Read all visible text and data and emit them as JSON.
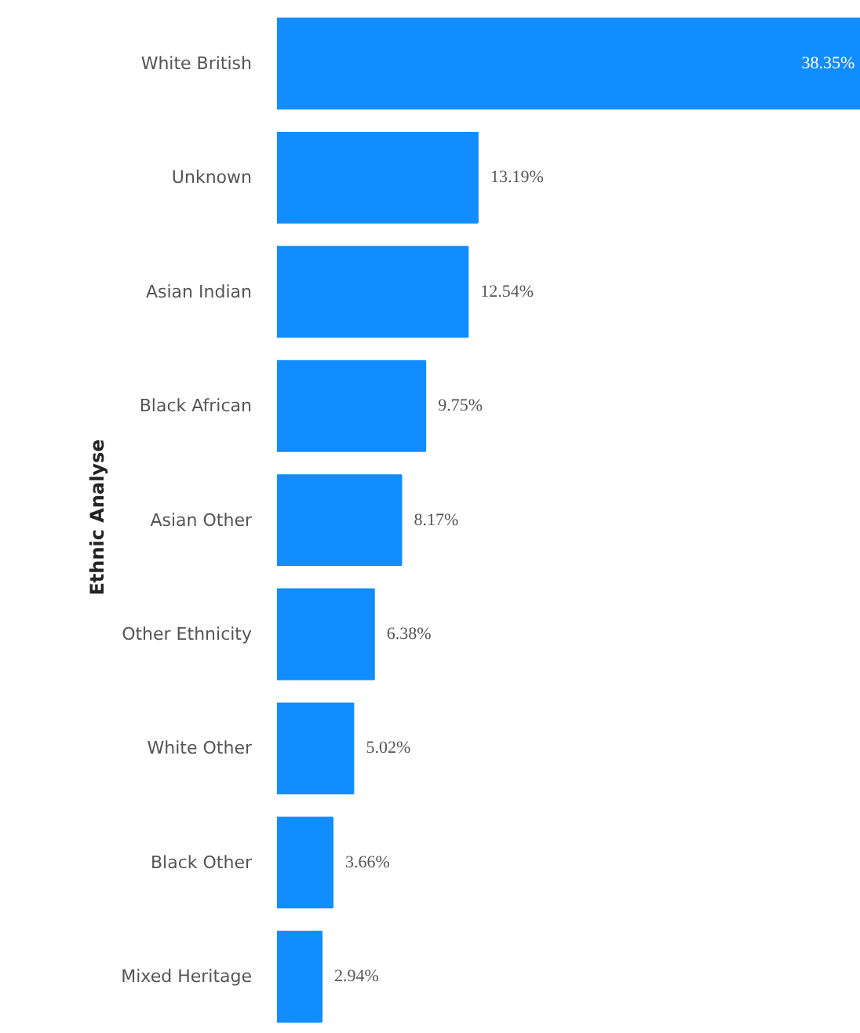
{
  "chart_data": {
    "type": "bar",
    "orientation": "horizontal",
    "ylabel": "Ethnic Analyse",
    "categories": [
      "White British",
      "Unknown",
      "Asian Indian",
      "Black African",
      "Asian Other",
      "Other Ethnicity",
      "White Other",
      "Black Other",
      "Mixed Heritage"
    ],
    "values": [
      38.35,
      13.19,
      12.54,
      9.75,
      8.17,
      6.38,
      5.02,
      3.66,
      2.94
    ],
    "value_labels": [
      "38.35%",
      "13.19%",
      "12.54%",
      "9.75%",
      "8.17%",
      "6.38%",
      "5.02%",
      "3.66%",
      "2.94%"
    ],
    "color": "#118dff",
    "grid": false,
    "tick_labels": "y"
  }
}
